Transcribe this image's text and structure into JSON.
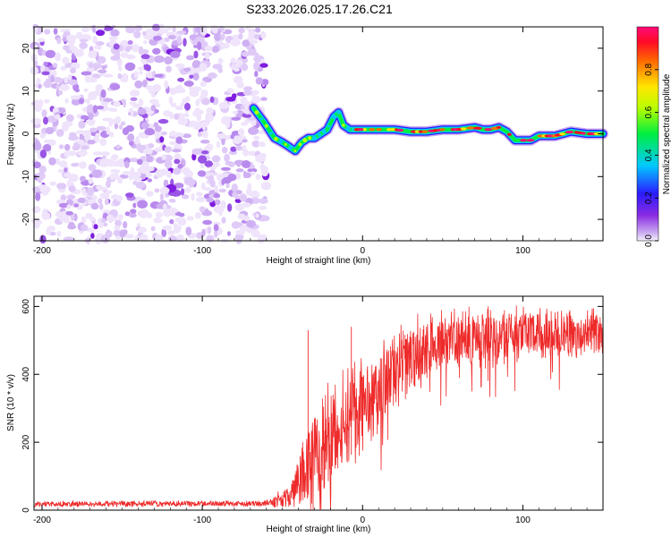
{
  "title": "S233.2026.025.17.26.C21",
  "colors": {
    "noise": "#8a2be2",
    "snr_line": "#ee2a2a",
    "axis": "#000000"
  },
  "chart_data": [
    {
      "type": "heatmap",
      "xlabel": "Height of straight line (km)",
      "ylabel": "Frequency (Hz)",
      "xlim": [
        -205,
        150
      ],
      "ylim": [
        -25,
        25
      ],
      "x_ticks": [
        -200,
        -100,
        0,
        100
      ],
      "y_ticks": [
        -20,
        -10,
        0,
        10,
        20
      ],
      "noise_region": [
        -205,
        -60
      ],
      "ridge": {
        "x": [
          -68,
          -62,
          -55,
          -50,
          -46,
          -42,
          -38,
          -34,
          -30,
          -26,
          -22,
          -18,
          -15,
          -12,
          -8,
          -4,
          0,
          10,
          20,
          30,
          40,
          50,
          60,
          70,
          75,
          80,
          85,
          90,
          95,
          100,
          105,
          110,
          115,
          120,
          125,
          130,
          140,
          150
        ],
        "freq": [
          6,
          3,
          -1,
          -2,
          -3,
          -4,
          -2,
          -1,
          -1,
          0,
          1,
          4,
          5,
          2,
          1,
          1,
          1,
          1,
          1,
          0.5,
          0.5,
          1,
          1,
          1.5,
          1,
          1,
          1.5,
          0.5,
          -1.5,
          -1.5,
          -1.5,
          -0.5,
          -0.5,
          -0.5,
          0,
          0.5,
          0,
          0
        ]
      },
      "colorbar": {
        "label": "Normalized spectral amplitude",
        "min": 0.0,
        "max": 1.0,
        "ticks": [
          0.0,
          0.2,
          0.4,
          0.6,
          0.8
        ],
        "tick_labels": [
          "0.0",
          "0.2",
          "0.4",
          "0.6",
          "0.8"
        ]
      }
    },
    {
      "type": "line",
      "xlabel": "Height of straight line (km)",
      "ylabel": "SNR (10 * v/v)",
      "xlim": [
        -205,
        150
      ],
      "ylim": [
        0,
        630
      ],
      "x_ticks": [
        -200,
        -100,
        0,
        100
      ],
      "y_ticks": [
        0,
        200,
        400,
        600
      ],
      "envelope": {
        "x": [
          -205,
          -60,
          -45,
          -35,
          -20,
          -10,
          0,
          10,
          25,
          40,
          60,
          80,
          100,
          120,
          150
        ],
        "mean": [
          18,
          20,
          40,
          120,
          210,
          260,
          300,
          350,
          430,
          480,
          500,
          510,
          520,
          530,
          510
        ],
        "amp": [
          7,
          7,
          30,
          110,
          130,
          120,
          110,
          100,
          90,
          80,
          70,
          70,
          60,
          60,
          60
        ]
      },
      "spikes": [
        {
          "x": -34,
          "y": 530
        },
        {
          "x": -7,
          "y": 540
        },
        {
          "x": -55,
          "y": 38
        }
      ]
    }
  ]
}
